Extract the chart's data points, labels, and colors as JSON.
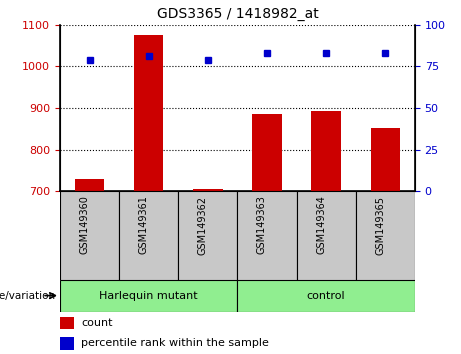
{
  "title": "GDS3365 / 1418982_at",
  "categories": [
    "GSM149360",
    "GSM149361",
    "GSM149362",
    "GSM149363",
    "GSM149364",
    "GSM149365"
  ],
  "red_values": [
    730,
    1075,
    706,
    886,
    893,
    853
  ],
  "blue_values": [
    79,
    81,
    79,
    83,
    83,
    83
  ],
  "ylim_left": [
    700,
    1100
  ],
  "ylim_right": [
    0,
    100
  ],
  "yticks_left": [
    700,
    800,
    900,
    1000,
    1100
  ],
  "yticks_right": [
    0,
    25,
    50,
    75,
    100
  ],
  "group1_label": "Harlequin mutant",
  "group2_label": "control",
  "group1_indices": [
    0,
    1,
    2
  ],
  "group2_indices": [
    3,
    4,
    5
  ],
  "legend_red": "count",
  "legend_blue": "percentile rank within the sample",
  "genotype_label": "genotype/variation",
  "bar_color": "#cc0000",
  "dot_color": "#0000cc",
  "group_bg_color": "#90ee90",
  "tick_area_color": "#c8c8c8",
  "grid_color": "#000000",
  "left_tick_color": "#cc0000",
  "right_tick_color": "#0000cc",
  "fig_width": 4.61,
  "fig_height": 3.54,
  "dpi": 100
}
